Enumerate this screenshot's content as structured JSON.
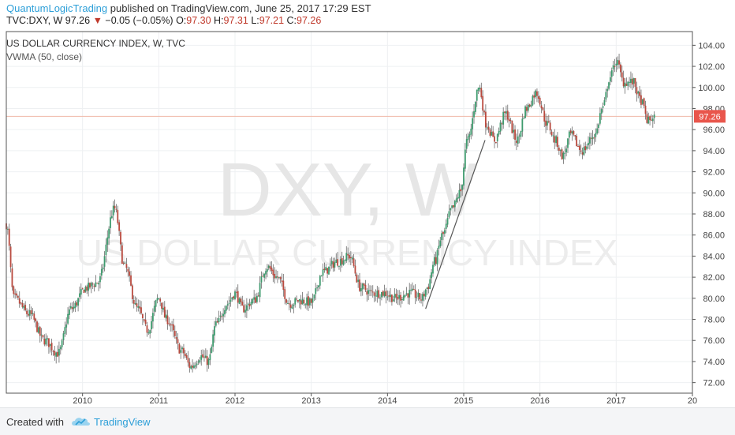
{
  "header": {
    "author": "QuantumLogicTrading",
    "published_text": "published on TradingView.com, June 25, 2017 17:29 EST"
  },
  "quote": {
    "symbol": "TVC:DXY, W",
    "last": "97.26",
    "change": "−0.05 (−0.05%)",
    "open_label": "O:",
    "open": "97.30",
    "high_label": "H:",
    "high": "97.31",
    "low_label": "L:",
    "low": "97.21",
    "close_label": "C:",
    "close": "97.26"
  },
  "chart_data": {
    "type": "candlestick",
    "title": "US DOLLAR CURRENCY INDEX, W, TVC",
    "indicator": "VWMA (50, close)",
    "watermark_symbol": "DXY, W",
    "watermark_name": "US DOLLAR CURRENCY INDEX",
    "x_ticks": [
      "2010",
      "2011",
      "2012",
      "2013",
      "2014",
      "2015",
      "2016",
      "2017",
      "20"
    ],
    "y_ticks": [
      "72.00",
      "74.00",
      "76.00",
      "78.00",
      "80.00",
      "82.00",
      "84.00",
      "86.00",
      "88.00",
      "90.00",
      "92.00",
      "94.00",
      "96.00",
      "98.00",
      "100.00",
      "102.00",
      "104.00"
    ],
    "ylim": [
      71.0,
      105.3
    ],
    "xlim": [
      2009.0,
      2018.0
    ],
    "last_price": 97.26,
    "last_price_label": "97.26",
    "trendline": {
      "x": [
        2014.5,
        2015.28
      ],
      "y": [
        79.0,
        95.0
      ]
    },
    "colors": {
      "up": "#3e9b6e",
      "down": "#b94a3f",
      "wick": "#6a6a6a",
      "price_line": "#f0b8a8",
      "price_tag": "#e9564c",
      "grid": "#eef0f2"
    },
    "anchors": [
      [
        2009.0,
        87.0
      ],
      [
        2009.1,
        80.0
      ],
      [
        2009.3,
        78.5
      ],
      [
        2009.5,
        76.0
      ],
      [
        2009.68,
        74.8
      ],
      [
        2009.85,
        79.0
      ],
      [
        2010.05,
        81.0
      ],
      [
        2010.2,
        81.5
      ],
      [
        2010.42,
        88.5
      ],
      [
        2010.55,
        83.0
      ],
      [
        2010.72,
        79.0
      ],
      [
        2010.85,
        77.0
      ],
      [
        2011.0,
        80.0
      ],
      [
        2011.1,
        78.0
      ],
      [
        2011.3,
        75.0
      ],
      [
        2011.42,
        73.5
      ],
      [
        2011.55,
        74.5
      ],
      [
        2011.65,
        74.0
      ],
      [
        2011.75,
        77.5
      ],
      [
        2011.9,
        79.5
      ],
      [
        2012.0,
        80.5
      ],
      [
        2012.1,
        79.0
      ],
      [
        2012.25,
        79.8
      ],
      [
        2012.42,
        83.0
      ],
      [
        2012.55,
        82.0
      ],
      [
        2012.72,
        79.5
      ],
      [
        2012.85,
        79.8
      ],
      [
        2013.0,
        79.6
      ],
      [
        2013.15,
        82.5
      ],
      [
        2013.35,
        83.5
      ],
      [
        2013.5,
        84.0
      ],
      [
        2013.65,
        81.0
      ],
      [
        2013.8,
        80.5
      ],
      [
        2013.95,
        80.5
      ],
      [
        2014.1,
        80.0
      ],
      [
        2014.3,
        80.5
      ],
      [
        2014.45,
        80.0
      ],
      [
        2014.52,
        81.0
      ],
      [
        2014.62,
        83.5
      ],
      [
        2014.72,
        86.0
      ],
      [
        2014.85,
        88.5
      ],
      [
        2014.95,
        90.0
      ],
      [
        2015.05,
        95.0
      ],
      [
        2015.2,
        100.0
      ],
      [
        2015.3,
        96.5
      ],
      [
        2015.4,
        95.0
      ],
      [
        2015.55,
        97.5
      ],
      [
        2015.7,
        95.0
      ],
      [
        2015.82,
        98.0
      ],
      [
        2015.95,
        99.5
      ],
      [
        2016.1,
        96.5
      ],
      [
        2016.2,
        95.0
      ],
      [
        2016.3,
        93.5
      ],
      [
        2016.4,
        95.5
      ],
      [
        2016.55,
        94.0
      ],
      [
        2016.72,
        95.5
      ],
      [
        2016.82,
        98.0
      ],
      [
        2016.92,
        101.0
      ],
      [
        2017.0,
        102.5
      ],
      [
        2017.1,
        100.5
      ],
      [
        2017.22,
        100.5
      ],
      [
        2017.32,
        98.8
      ],
      [
        2017.42,
        96.8
      ],
      [
        2017.5,
        97.26
      ]
    ]
  }
}
